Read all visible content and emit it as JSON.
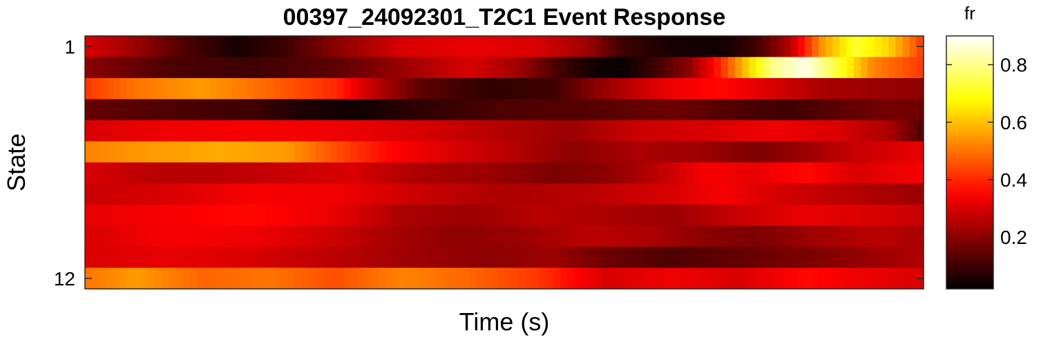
{
  "chart_data": {
    "type": "heatmap",
    "title": "00397_24092301_T2C1 Event Response",
    "xlabel": "Time (s)",
    "ylabel": "State",
    "y_tick_labels": [
      "1",
      "12"
    ],
    "y_tick_values": [
      1,
      12
    ],
    "rows": 12,
    "colorbar": {
      "title": "fr",
      "range": [
        0.02,
        0.9
      ],
      "ticks": [
        0.2,
        0.4,
        0.6,
        0.8
      ],
      "tick_labels": [
        "0.2",
        "0.4",
        "0.6",
        "0.8"
      ],
      "colormap": "hot"
    },
    "row_profiles": [
      [
        [
          0,
          0.3
        ],
        [
          0.06,
          0.22
        ],
        [
          0.12,
          0.12
        ],
        [
          0.18,
          0.05
        ],
        [
          0.24,
          0.1
        ],
        [
          0.3,
          0.2
        ],
        [
          0.38,
          0.3
        ],
        [
          0.46,
          0.32
        ],
        [
          0.54,
          0.3
        ],
        [
          0.6,
          0.22
        ],
        [
          0.64,
          0.1
        ],
        [
          0.7,
          0.05
        ],
        [
          0.76,
          0.04
        ],
        [
          0.8,
          0.1
        ],
        [
          0.84,
          0.25
        ],
        [
          0.88,
          0.55
        ],
        [
          0.92,
          0.72
        ],
        [
          0.96,
          0.62
        ],
        [
          1,
          0.42
        ]
      ],
      [
        [
          0,
          0.2
        ],
        [
          0.1,
          0.12
        ],
        [
          0.2,
          0.1
        ],
        [
          0.3,
          0.14
        ],
        [
          0.38,
          0.22
        ],
        [
          0.46,
          0.3
        ],
        [
          0.52,
          0.22
        ],
        [
          0.56,
          0.12
        ],
        [
          0.6,
          0.05
        ],
        [
          0.64,
          0.03
        ],
        [
          0.68,
          0.1
        ],
        [
          0.72,
          0.2
        ],
        [
          0.75,
          0.35
        ],
        [
          0.78,
          0.55
        ],
        [
          0.82,
          0.8
        ],
        [
          0.86,
          0.88
        ],
        [
          0.9,
          0.72
        ],
        [
          0.94,
          0.52
        ],
        [
          1,
          0.42
        ]
      ],
      [
        [
          0,
          0.42
        ],
        [
          0.06,
          0.5
        ],
        [
          0.14,
          0.55
        ],
        [
          0.22,
          0.48
        ],
        [
          0.3,
          0.4
        ],
        [
          0.34,
          0.28
        ],
        [
          0.4,
          0.14
        ],
        [
          0.48,
          0.08
        ],
        [
          0.56,
          0.1
        ],
        [
          0.6,
          0.18
        ],
        [
          0.64,
          0.25
        ],
        [
          0.7,
          0.33
        ],
        [
          0.76,
          0.36
        ],
        [
          0.82,
          0.3
        ],
        [
          0.88,
          0.24
        ],
        [
          0.94,
          0.22
        ],
        [
          1,
          0.2
        ]
      ],
      [
        [
          0,
          0.15
        ],
        [
          0.1,
          0.12
        ],
        [
          0.2,
          0.1
        ],
        [
          0.26,
          0.06
        ],
        [
          0.32,
          0.04
        ],
        [
          0.4,
          0.08
        ],
        [
          0.5,
          0.12
        ],
        [
          0.6,
          0.13
        ],
        [
          0.7,
          0.16
        ],
        [
          0.78,
          0.12
        ],
        [
          0.84,
          0.1
        ],
        [
          0.9,
          0.14
        ],
        [
          0.96,
          0.17
        ],
        [
          1,
          0.16
        ]
      ],
      [
        [
          0,
          0.3
        ],
        [
          0.1,
          0.33
        ],
        [
          0.2,
          0.34
        ],
        [
          0.3,
          0.33
        ],
        [
          0.4,
          0.3
        ],
        [
          0.5,
          0.25
        ],
        [
          0.58,
          0.22
        ],
        [
          0.66,
          0.28
        ],
        [
          0.74,
          0.3
        ],
        [
          0.82,
          0.33
        ],
        [
          0.9,
          0.3
        ],
        [
          0.96,
          0.24
        ],
        [
          1,
          0.12
        ]
      ],
      [
        [
          0,
          0.52
        ],
        [
          0.08,
          0.55
        ],
        [
          0.16,
          0.57
        ],
        [
          0.24,
          0.55
        ],
        [
          0.3,
          0.45
        ],
        [
          0.36,
          0.36
        ],
        [
          0.44,
          0.3
        ],
        [
          0.52,
          0.25
        ],
        [
          0.58,
          0.2
        ],
        [
          0.66,
          0.24
        ],
        [
          0.74,
          0.22
        ],
        [
          0.8,
          0.18
        ],
        [
          0.86,
          0.22
        ],
        [
          0.92,
          0.28
        ],
        [
          1,
          0.32
        ]
      ],
      [
        [
          0,
          0.3
        ],
        [
          0.08,
          0.26
        ],
        [
          0.16,
          0.26
        ],
        [
          0.24,
          0.28
        ],
        [
          0.32,
          0.3
        ],
        [
          0.4,
          0.24
        ],
        [
          0.48,
          0.22
        ],
        [
          0.56,
          0.18
        ],
        [
          0.62,
          0.2
        ],
        [
          0.68,
          0.26
        ],
        [
          0.74,
          0.34
        ],
        [
          0.8,
          0.32
        ],
        [
          0.86,
          0.36
        ],
        [
          0.92,
          0.3
        ],
        [
          1,
          0.34
        ]
      ],
      [
        [
          0,
          0.28
        ],
        [
          0.1,
          0.3
        ],
        [
          0.2,
          0.34
        ],
        [
          0.3,
          0.33
        ],
        [
          0.4,
          0.28
        ],
        [
          0.5,
          0.24
        ],
        [
          0.6,
          0.26
        ],
        [
          0.7,
          0.3
        ],
        [
          0.76,
          0.34
        ],
        [
          0.82,
          0.3
        ],
        [
          0.9,
          0.26
        ],
        [
          1,
          0.22
        ]
      ],
      [
        [
          0,
          0.32
        ],
        [
          0.1,
          0.34
        ],
        [
          0.2,
          0.36
        ],
        [
          0.3,
          0.32
        ],
        [
          0.38,
          0.24
        ],
        [
          0.46,
          0.22
        ],
        [
          0.54,
          0.26
        ],
        [
          0.62,
          0.24
        ],
        [
          0.7,
          0.22
        ],
        [
          0.78,
          0.28
        ],
        [
          0.86,
          0.32
        ],
        [
          0.94,
          0.3
        ],
        [
          1,
          0.28
        ]
      ],
      [
        [
          0,
          0.3
        ],
        [
          0.1,
          0.34
        ],
        [
          0.2,
          0.33
        ],
        [
          0.3,
          0.28
        ],
        [
          0.36,
          0.24
        ],
        [
          0.44,
          0.2
        ],
        [
          0.52,
          0.22
        ],
        [
          0.6,
          0.26
        ],
        [
          0.68,
          0.24
        ],
        [
          0.74,
          0.2
        ],
        [
          0.8,
          0.18
        ],
        [
          0.86,
          0.22
        ],
        [
          0.94,
          0.26
        ],
        [
          1,
          0.24
        ]
      ],
      [
        [
          0,
          0.3
        ],
        [
          0.1,
          0.32
        ],
        [
          0.2,
          0.3
        ],
        [
          0.3,
          0.26
        ],
        [
          0.4,
          0.22
        ],
        [
          0.48,
          0.2
        ],
        [
          0.56,
          0.22
        ],
        [
          0.62,
          0.16
        ],
        [
          0.7,
          0.12
        ],
        [
          0.78,
          0.15
        ],
        [
          0.86,
          0.18
        ],
        [
          0.94,
          0.22
        ],
        [
          1,
          0.25
        ]
      ],
      [
        [
          0,
          0.5
        ],
        [
          0.06,
          0.55
        ],
        [
          0.14,
          0.48
        ],
        [
          0.22,
          0.5
        ],
        [
          0.3,
          0.45
        ],
        [
          0.38,
          0.52
        ],
        [
          0.46,
          0.48
        ],
        [
          0.54,
          0.42
        ],
        [
          0.58,
          0.36
        ],
        [
          0.62,
          0.3
        ],
        [
          0.7,
          0.33
        ],
        [
          0.78,
          0.3
        ],
        [
          0.86,
          0.36
        ],
        [
          0.92,
          0.33
        ],
        [
          1,
          0.3
        ]
      ]
    ]
  }
}
